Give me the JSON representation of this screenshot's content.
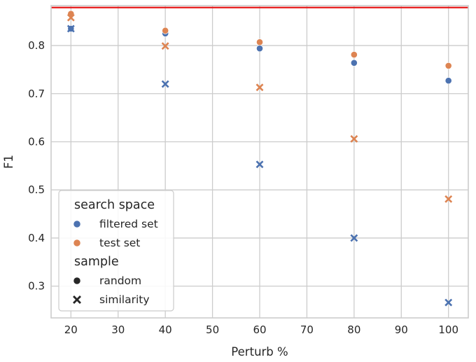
{
  "chart_data": {
    "type": "scatter",
    "title": "",
    "xlabel": "Perturb %",
    "ylabel": "F1",
    "xlim": [
      15.8,
      104.2
    ],
    "ylim": [
      0.234,
      0.883
    ],
    "xticks": [
      20,
      30,
      40,
      50,
      60,
      70,
      80,
      90,
      100
    ],
    "yticks": [
      0.3,
      0.4,
      0.5,
      0.6,
      0.7,
      0.8
    ],
    "grid": true,
    "legend_placement": "lower-left",
    "hline": {
      "y": 0.879,
      "color": "#e6191a"
    },
    "hue_title": "search space",
    "style_title": "sample",
    "hue_entries": [
      {
        "label": "filtered set",
        "color": "#4c72b0"
      },
      {
        "label": "test set",
        "color": "#dd8452"
      }
    ],
    "style_entries": [
      {
        "label": "random",
        "marker": "circle"
      },
      {
        "label": "similarity",
        "marker": "x"
      }
    ],
    "series": [
      {
        "search_space": "filtered set",
        "sample": "random",
        "color": "#4c72b0",
        "marker": "circle",
        "x": [
          20,
          40,
          60,
          80,
          100
        ],
        "y": [
          0.835,
          0.825,
          0.794,
          0.764,
          0.727
        ]
      },
      {
        "search_space": "test set",
        "sample": "random",
        "color": "#dd8452",
        "marker": "circle",
        "x": [
          20,
          40,
          60,
          80,
          100
        ],
        "y": [
          0.866,
          0.831,
          0.807,
          0.781,
          0.758
        ]
      },
      {
        "search_space": "filtered set",
        "sample": "similarity",
        "color": "#4c72b0",
        "marker": "x",
        "x": [
          20,
          40,
          60,
          80,
          100
        ],
        "y": [
          0.835,
          0.72,
          0.553,
          0.4,
          0.266
        ]
      },
      {
        "search_space": "test set",
        "sample": "similarity",
        "color": "#dd8452",
        "marker": "x",
        "x": [
          20,
          40,
          60,
          80,
          100
        ],
        "y": [
          0.858,
          0.799,
          0.713,
          0.606,
          0.481
        ]
      }
    ]
  }
}
